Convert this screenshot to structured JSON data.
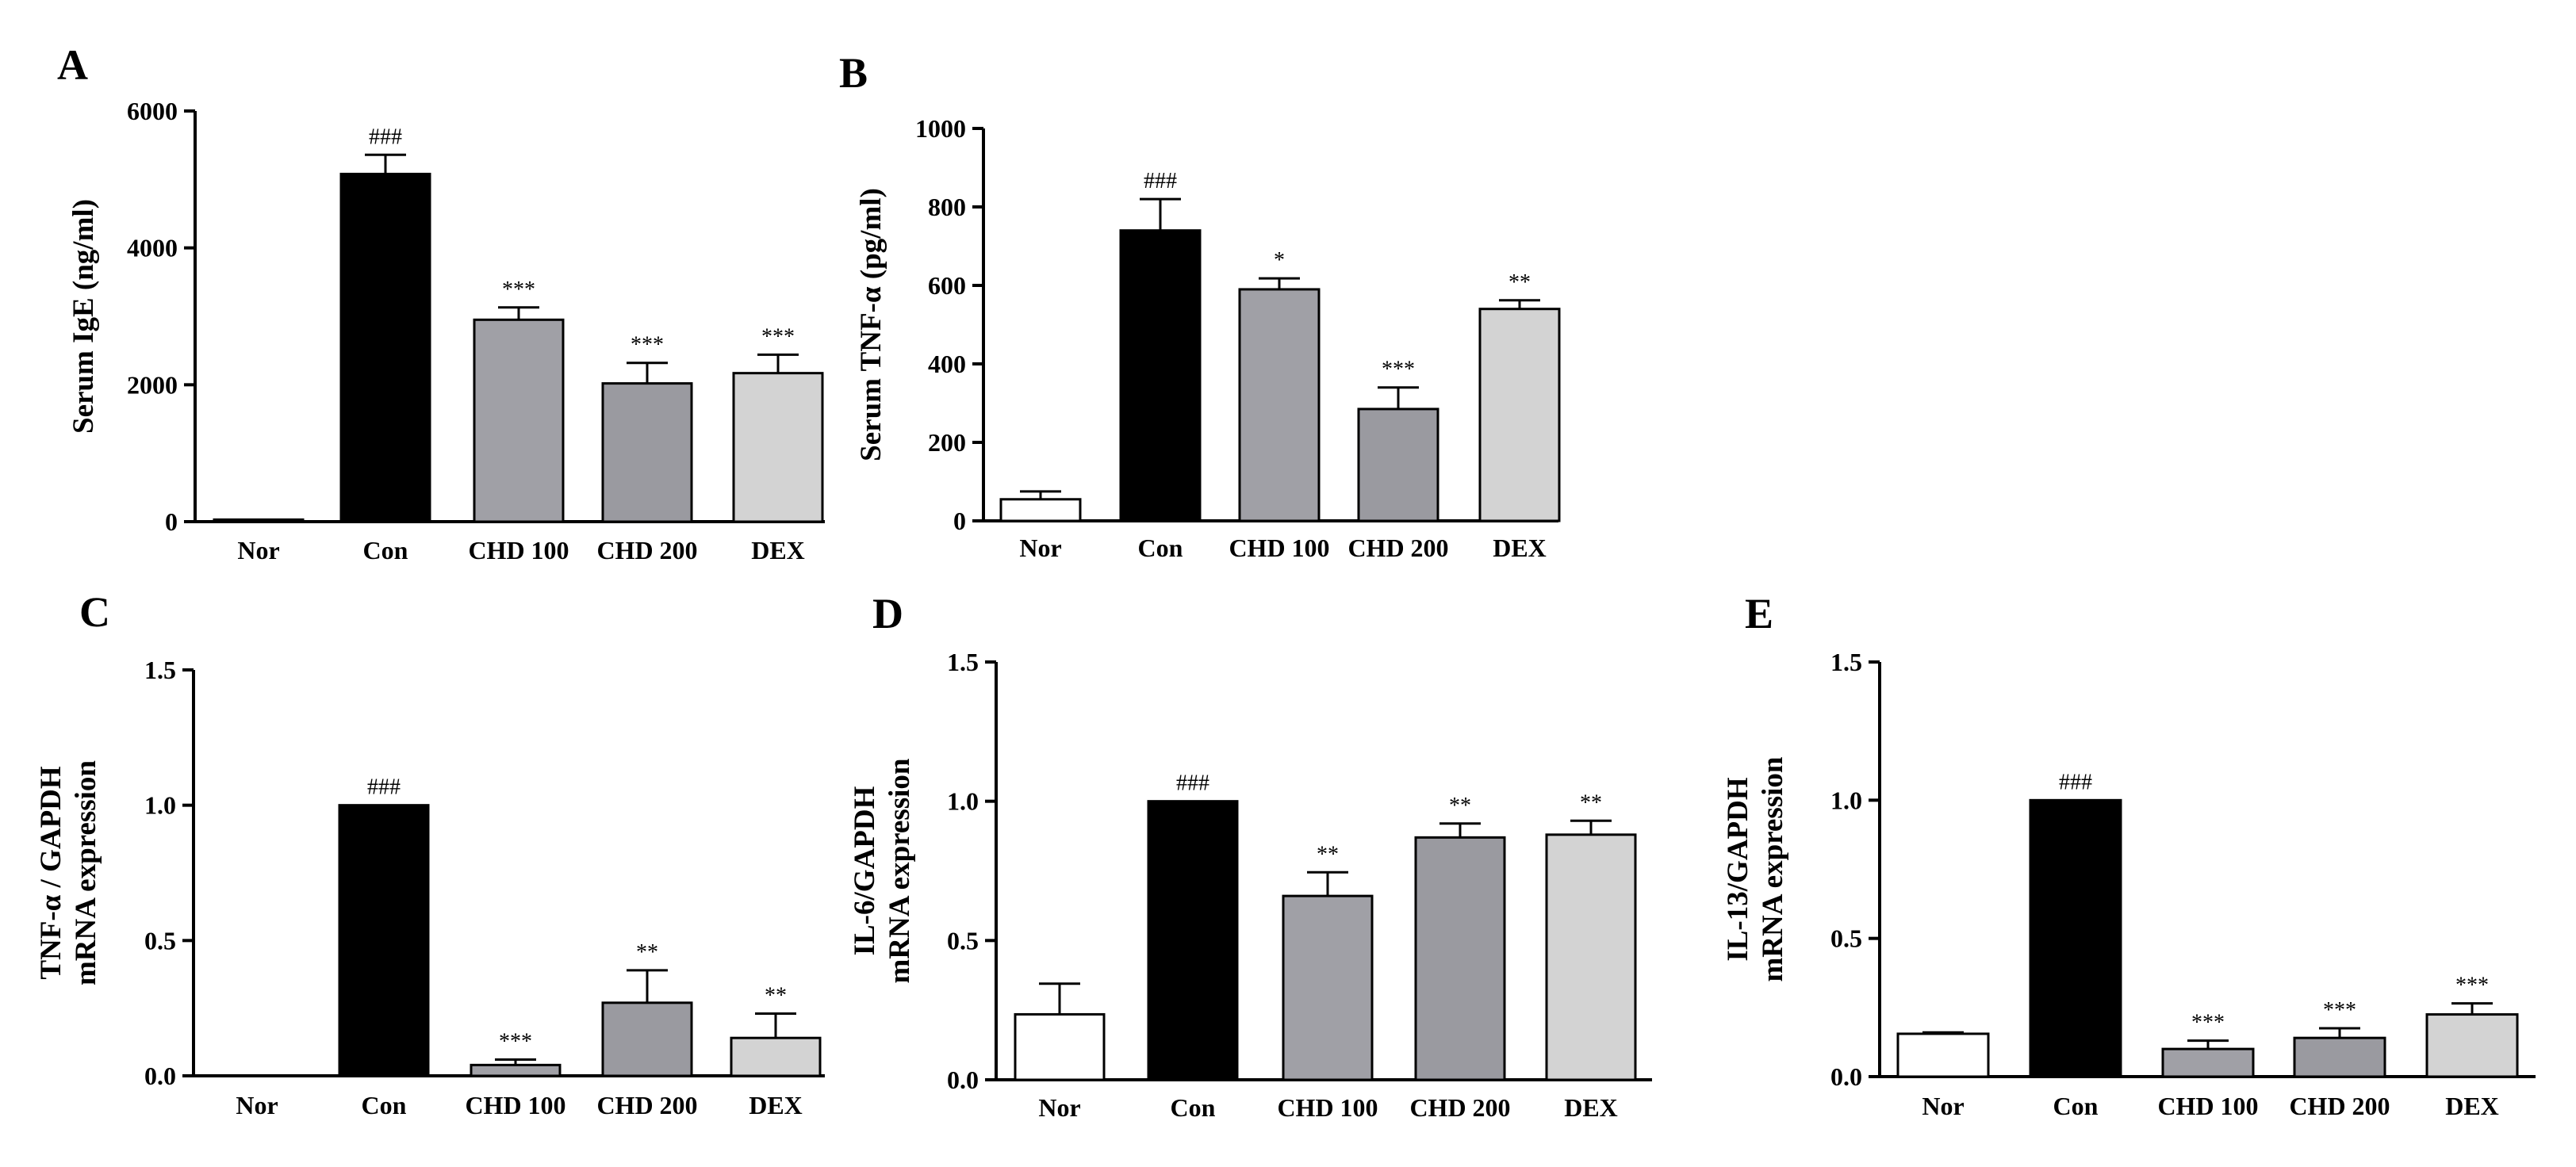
{
  "figure": {
    "bar_colors": [
      "#ffffff",
      "#000000",
      "#a0a0a6",
      "#9a9aa0",
      "#d3d3d3"
    ],
    "axis_color": "#000000"
  },
  "chart_data": [
    {
      "panel": "A",
      "type": "bar",
      "ylabel": "Serum IgE (ng/ml)",
      "ylim": [
        0,
        6000
      ],
      "yticks": [
        0,
        2000,
        4000,
        6000
      ],
      "ytick_labels": [
        "0",
        "2000",
        "4000",
        "6000"
      ],
      "categories": [
        "Nor",
        "Con",
        "CHD 100",
        "CHD 200",
        "DEX"
      ],
      "values": [
        30,
        5080,
        2950,
        2020,
        2170
      ],
      "errors": [
        0,
        280,
        180,
        300,
        270
      ],
      "significance": [
        "",
        "###",
        "***",
        "***",
        "***"
      ]
    },
    {
      "panel": "B",
      "type": "bar",
      "ylabel": "Serum TNF-α (pg/ml)",
      "ylim": [
        0,
        1000
      ],
      "yticks": [
        0,
        200,
        400,
        600,
        800,
        1000
      ],
      "ytick_labels": [
        "0",
        "200",
        "400",
        "600",
        "800",
        "1000"
      ],
      "categories": [
        "Nor",
        "Con",
        "CHD 100",
        "CHD 200",
        "DEX"
      ],
      "values": [
        55,
        740,
        590,
        285,
        540
      ],
      "errors": [
        20,
        80,
        28,
        55,
        22
      ],
      "significance": [
        "",
        "###",
        "*",
        "***",
        "**"
      ]
    },
    {
      "panel": "C",
      "type": "bar",
      "ylabel": [
        "TNF-α / GAPDH",
        "mRNA expression"
      ],
      "ylim": [
        0,
        1.5
      ],
      "yticks": [
        0,
        0.5,
        1.0,
        1.5
      ],
      "ytick_labels": [
        "0.0",
        "0.5",
        "1.0",
        "1.5"
      ],
      "categories": [
        "Nor",
        "Con",
        "CHD 100",
        "CHD 200",
        "DEX"
      ],
      "values": [
        0,
        1.0,
        0.04,
        0.27,
        0.14
      ],
      "errors": [
        0,
        0,
        0.02,
        0.12,
        0.09
      ],
      "significance": [
        "",
        "###",
        "***",
        "**",
        "**"
      ]
    },
    {
      "panel": "D",
      "type": "bar",
      "ylabel": [
        "IL-6/GAPDH",
        "mRNA expression"
      ],
      "ylim": [
        0,
        1.5
      ],
      "yticks": [
        0,
        0.5,
        1.0,
        1.5
      ],
      "ytick_labels": [
        "0.0",
        "0.5",
        "1.0",
        "1.5"
      ],
      "categories": [
        "Nor",
        "Con",
        "CHD 100",
        "CHD 200",
        "DEX"
      ],
      "values": [
        0.235,
        1.0,
        0.66,
        0.87,
        0.88
      ],
      "errors": [
        0.11,
        0,
        0.085,
        0.05,
        0.05
      ],
      "significance": [
        "",
        "###",
        "**",
        "**",
        "**"
      ]
    },
    {
      "panel": "E",
      "type": "bar",
      "ylabel": [
        "IL-13/GAPDH",
        "mRNA expression"
      ],
      "ylim": [
        0,
        1.5
      ],
      "yticks": [
        0,
        0.5,
        1.0,
        1.5
      ],
      "ytick_labels": [
        "0.0",
        "0.5",
        "1.0",
        "1.5"
      ],
      "categories": [
        "Nor",
        "Con",
        "CHD 100",
        "CHD 200",
        "DEX"
      ],
      "values": [
        0.155,
        1.0,
        0.1,
        0.14,
        0.225
      ],
      "errors": [
        0.005,
        0,
        0.03,
        0.035,
        0.04
      ],
      "significance": [
        "",
        "###",
        "***",
        "***",
        "***"
      ]
    }
  ]
}
